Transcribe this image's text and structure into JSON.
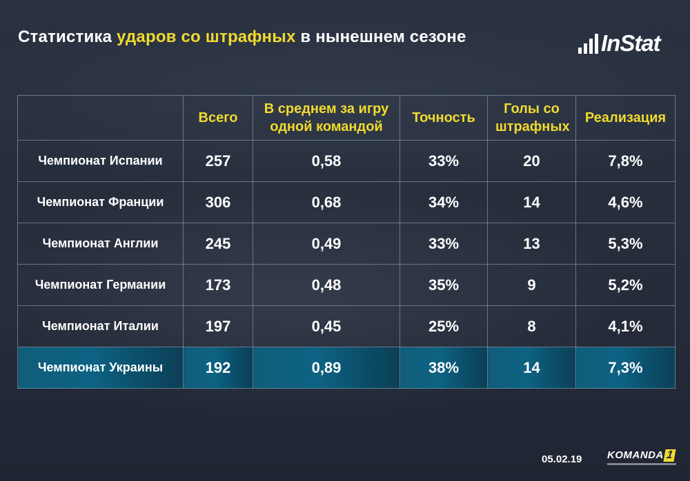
{
  "title": {
    "part1": "Статистика ",
    "highlight": "ударов со штрафных",
    "part2": " в нынешнем сезоне"
  },
  "logo": {
    "text": "InStat"
  },
  "footer": {
    "date": "05.02.19",
    "brand": "KOMANDA",
    "brand_number": "1"
  },
  "colors": {
    "accent_yellow": "#f1da2e",
    "highlight_row": "#0d6283",
    "background": "#262e3c"
  },
  "chart_data": {
    "type": "table",
    "columns": [
      "",
      "Всего",
      "В среднем за игру одной командой",
      "Точность",
      "Голы со штрафных",
      "Реализация"
    ],
    "rows": [
      {
        "league": "Чемпионат Испании",
        "total": "257",
        "avg": "0,58",
        "accuracy": "33%",
        "goals": "20",
        "conversion": "7,8%"
      },
      {
        "league": "Чемпионат Франции",
        "total": "306",
        "avg": "0,68",
        "accuracy": "34%",
        "goals": "14",
        "conversion": "4,6%"
      },
      {
        "league": "Чемпионат Англии",
        "total": "245",
        "avg": "0,49",
        "accuracy": "33%",
        "goals": "13",
        "conversion": "5,3%"
      },
      {
        "league": "Чемпионат Германии",
        "total": "173",
        "avg": "0,48",
        "accuracy": "35%",
        "goals": "9",
        "conversion": "5,2%"
      },
      {
        "league": "Чемпионат Италии",
        "total": "197",
        "avg": "0,45",
        "accuracy": "25%",
        "goals": "8",
        "conversion": "4,1%"
      },
      {
        "league": "Чемпионат Украины",
        "total": "192",
        "avg": "0,89",
        "accuracy": "38%",
        "goals": "14",
        "conversion": "7,3%",
        "highlighted": true
      }
    ]
  }
}
